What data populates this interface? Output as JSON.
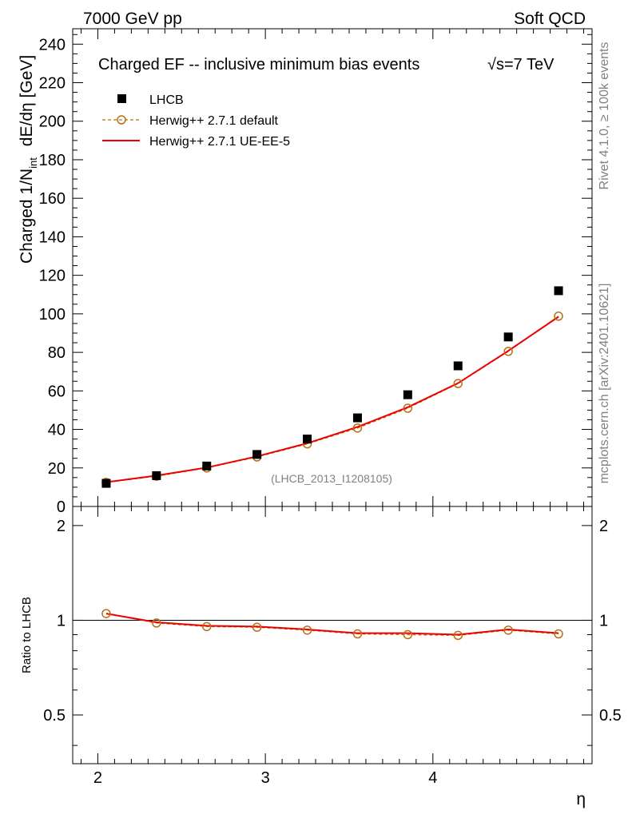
{
  "header": {
    "left": "7000 GeV pp",
    "right": "Soft QCD"
  },
  "side": {
    "rivet": "Rivet 4.1.0, ≥ 100k events",
    "mcplots": "mcplots.cern.ch [arXiv:2401.10621]"
  },
  "chart_data": {
    "type": "scatter",
    "title": "Charged EF -- inclusive minimum bias events",
    "title_energy": "√s=7 TeV",
    "watermark": "(LHCB_2013_I1208105)",
    "xlabel": "η",
    "ylabel_main": "Charged 1/N",
    "ylabel_sub": "int",
    "ylabel_unit": "dE/dη [GeV]",
    "ratio_ylabel": "Ratio to LHCB",
    "xlim": [
      1.85,
      4.95
    ],
    "ylim": [
      0,
      248
    ],
    "ratio_ylim": [
      0.35,
      2.3
    ],
    "x_ticks": [
      2,
      3,
      4
    ],
    "x_tick_labels": [
      "2",
      "3",
      "4"
    ],
    "y_ticks": [
      0,
      20,
      40,
      60,
      80,
      100,
      120,
      140,
      160,
      180,
      200,
      220,
      240
    ],
    "y_tick_labels": [
      "0",
      "20",
      "40",
      "60",
      "80",
      "100",
      "120",
      "140",
      "160",
      "180",
      "200",
      "220",
      "240"
    ],
    "ratio_ticks": [
      0.5,
      1,
      2
    ],
    "ratio_tick_labels": [
      "0.5",
      "1",
      "2"
    ],
    "x": [
      2.05,
      2.35,
      2.65,
      2.95,
      3.25,
      3.55,
      3.85,
      4.15,
      4.45,
      4.75
    ],
    "series": [
      {
        "name": "LHCB",
        "style": "marker-square",
        "color": "#000000",
        "values": [
          12,
          16,
          21,
          27,
          35,
          46,
          58,
          73,
          88,
          112
        ]
      },
      {
        "name": "Herwig++ 2.7.1 default",
        "style": "dashed-circle",
        "color": "#b86e14",
        "values": [
          12.5,
          15.7,
          20.0,
          25.7,
          32.5,
          40.7,
          51.0,
          63.8,
          80.5,
          98.8
        ]
      },
      {
        "name": "Herwig++ 2.7.1 UE-EE-5",
        "style": "solid-line",
        "color": "#ee0000",
        "values": [
          12.6,
          16.0,
          20.2,
          26.0,
          32.8,
          41.3,
          51.5,
          64.0,
          80.8,
          98.5
        ]
      }
    ],
    "ratio_series": [
      {
        "name": "Herwig++ 2.7.1 default",
        "values": [
          1.05,
          0.98,
          0.955,
          0.95,
          0.93,
          0.905,
          0.9,
          0.895,
          0.93,
          0.905
        ]
      },
      {
        "name": "Herwig++ 2.7.1 UE-EE-5",
        "values": [
          1.05,
          0.985,
          0.96,
          0.955,
          0.935,
          0.91,
          0.91,
          0.9,
          0.935,
          0.91
        ]
      }
    ]
  }
}
